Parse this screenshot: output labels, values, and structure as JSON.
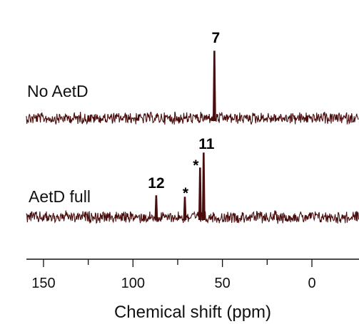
{
  "chart_data": {
    "type": "line",
    "x_axis": {
      "label": "Chemical shift (ppm)",
      "reversed": true,
      "range": [
        160,
        -25
      ],
      "ticks": [
        150,
        100,
        50,
        0
      ],
      "minor_ticks": [
        125,
        75,
        25
      ]
    },
    "color": "#4a0d0d",
    "series": [
      {
        "name": "No AetD",
        "peaks": [
          {
            "x": 54.5,
            "label": "7",
            "height": 1.0
          }
        ],
        "noise": "flat baseline noise"
      },
      {
        "name": "AetD full",
        "peaks": [
          {
            "x": 87,
            "label": "12",
            "height": 0.28
          },
          {
            "x": 71,
            "label": "*",
            "height": 0.22
          },
          {
            "x": 62.5,
            "label": "*",
            "height": 0.82
          },
          {
            "x": 60.5,
            "label": "11",
            "height": 1.0
          }
        ],
        "noise": "flat baseline noise"
      }
    ],
    "grid": false,
    "legend": "none"
  }
}
